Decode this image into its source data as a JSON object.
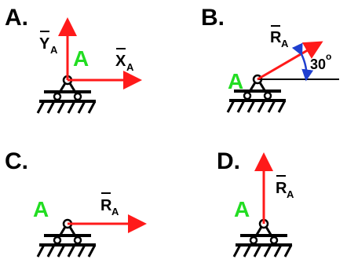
{
  "colors": {
    "arrow": "#ff1a1a",
    "node_label": "#22dd22",
    "angle": "#1f3fcf",
    "ink": "#000000"
  },
  "panels": {
    "a": {
      "letter": "A.",
      "node": "A",
      "vec_x_letter": "X",
      "vec_x_sub": "A",
      "vec_y_letter": "Y",
      "vec_y_sub": "A"
    },
    "b": {
      "letter": "B.",
      "node": "A",
      "vec_letter": "R",
      "vec_sub": "A",
      "angle_value": "30",
      "angle_unit": "o"
    },
    "c": {
      "letter": "C.",
      "node": "A",
      "vec_letter": "R",
      "vec_sub": "A"
    },
    "d": {
      "letter": "D.",
      "node": "A",
      "vec_letter": "R",
      "vec_sub": "A"
    }
  }
}
